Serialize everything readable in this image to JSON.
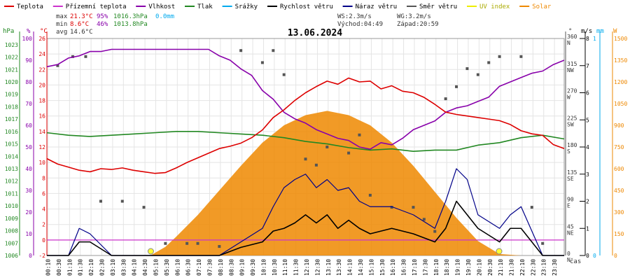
{
  "legend": [
    {
      "label": "Teplota",
      "color": "#dd0000"
    },
    {
      "label": "Přízemní teplota",
      "color": "#cc33cc"
    },
    {
      "label": "Vlhkost",
      "color": "#8800aa"
    },
    {
      "label": "Tlak",
      "color": "#228822"
    },
    {
      "label": "Srážky",
      "color": "#00aaee"
    },
    {
      "label": "Rychlost větru",
      "color": "#000000"
    },
    {
      "label": "Náraz větru",
      "color": "#000088"
    },
    {
      "label": "Směr větru",
      "color": "#555555"
    },
    {
      "label": "UV index",
      "color": "#eeee00"
    },
    {
      "label": "Solar",
      "color": "#ee8800"
    }
  ],
  "stats": {
    "max_label": "max",
    "min_label": "min",
    "avg_label": "avg",
    "max_temp": "21.3°C",
    "max_hum": "95%",
    "max_press": "1016.3hPa",
    "max_rain": "0.0mm",
    "min_temp": "8.6°C",
    "min_hum": "46%",
    "min_press": "1013.8hPa",
    "avg_temp": "14.6°C"
  },
  "wind_info": {
    "ws": "WS:2.3m/s",
    "wg": "WG:3.2m/s",
    "sunrise": "Východ:04:49",
    "sunset": "Západ:20:59"
  },
  "title": "13.06.2024",
  "axis_units": {
    "pressure": "hPa",
    "humidity": "%",
    "temperature": "°C",
    "wind_dir": "°",
    "wind_speed": "m/s",
    "rain": "mm",
    "solar": "W",
    "time": "čas"
  },
  "chart_data": {
    "type": "line",
    "title": "13.06.2024",
    "x_label": "čas",
    "x_ticks": [
      "00:10",
      "00:30",
      "01:10",
      "01:30",
      "02:10",
      "02:30",
      "03:10",
      "03:30",
      "04:10",
      "04:30",
      "05:10",
      "05:30",
      "06:10",
      "06:30",
      "07:10",
      "07:30",
      "08:10",
      "08:30",
      "09:10",
      "09:30",
      "10:10",
      "10:30",
      "11:10",
      "11:30",
      "12:10",
      "12:30",
      "13:10",
      "13:30",
      "14:10",
      "14:30",
      "15:10",
      "15:30",
      "16:10",
      "16:30",
      "17:10",
      "17:30",
      "18:10",
      "18:30",
      "19:10",
      "19:30",
      "20:10",
      "20:30",
      "21:10",
      "21:30",
      "22:10",
      "22:30",
      "23:10",
      "23:30"
    ],
    "x_range_hours": [
      0,
      24
    ],
    "axes": {
      "pressure_hPa": {
        "ticks": [
          1006,
          1007,
          1008,
          1009,
          1010,
          1011,
          1012,
          1013,
          1014,
          1015,
          1016,
          1017,
          1018,
          1019,
          1020,
          1021,
          1022,
          1023
        ],
        "range": [
          1006,
          1023.5
        ]
      },
      "humidity_pct": {
        "ticks": [
          0,
          10,
          20,
          30,
          40,
          50,
          60,
          70,
          80,
          90,
          100
        ],
        "range": [
          0,
          100
        ]
      },
      "temperature_C": {
        "ticks": [
          -2,
          0,
          2,
          4,
          6,
          8,
          10,
          12,
          14,
          16,
          18,
          20,
          22,
          24,
          26
        ],
        "range": [
          -2,
          26
        ]
      },
      "wind_dir_deg": {
        "ticks": [
          0,
          45,
          90,
          135,
          180,
          225,
          270,
          315,
          360
        ],
        "labels": [
          "N",
          "NE",
          "E",
          "SE",
          "S",
          "SW",
          "W",
          "NW",
          "N"
        ],
        "range": [
          0,
          360
        ]
      },
      "wind_speed_ms": {
        "ticks": [
          0,
          1,
          2,
          3,
          4,
          5,
          6,
          7,
          8
        ],
        "range": [
          0,
          8
        ]
      },
      "rain_mm": {
        "ticks": [
          0,
          1
        ],
        "range": [
          0,
          1
        ]
      },
      "solar_W": {
        "ticks": [
          0,
          150,
          300,
          450,
          600,
          750,
          900,
          1050,
          1200,
          1350,
          1500
        ],
        "range": [
          0,
          1500
        ]
      }
    },
    "series": [
      {
        "name": "Teplota",
        "unit": "°C",
        "axis": "temperature_C",
        "color": "#dd0000",
        "x": [
          0,
          0.5,
          1,
          1.5,
          2,
          2.5,
          3,
          3.5,
          4,
          4.5,
          5,
          5.5,
          6,
          6.5,
          7,
          7.5,
          8,
          8.5,
          9,
          9.5,
          10,
          10.5,
          11,
          11.5,
          12,
          12.5,
          13,
          13.5,
          14,
          14.5,
          15,
          15.5,
          16,
          16.5,
          17,
          17.5,
          18,
          18.5,
          19,
          19.5,
          20,
          20.5,
          21,
          21.5,
          22,
          22.5,
          23,
          23.5,
          24
        ],
        "y": [
          10.5,
          9.8,
          9.4,
          9.0,
          8.8,
          9.2,
          9.1,
          9.3,
          9.0,
          8.8,
          8.6,
          8.7,
          9.3,
          10.0,
          10.6,
          11.2,
          11.8,
          12.1,
          12.5,
          13.2,
          14.2,
          15.8,
          16.8,
          18.0,
          19.0,
          19.8,
          20.5,
          20.1,
          20.9,
          20.4,
          20.5,
          19.5,
          19.9,
          19.2,
          19.0,
          18.4,
          17.5,
          16.5,
          16.2,
          16.0,
          15.8,
          15.6,
          15.4,
          14.9,
          14.1,
          13.7,
          13.5,
          12.3,
          11.8
        ]
      },
      {
        "name": "Vlhkost",
        "unit": "%",
        "axis": "humidity_pct",
        "color": "#8800aa",
        "x": [
          0,
          0.5,
          1,
          1.5,
          2,
          2.5,
          3,
          3.5,
          4,
          4.5,
          5,
          5.5,
          6,
          6.5,
          7,
          7.5,
          8,
          8.5,
          9,
          9.5,
          10,
          10.5,
          11,
          11.5,
          12,
          12.5,
          13,
          13.5,
          14,
          14.5,
          15,
          15.5,
          16,
          16.5,
          17,
          17.5,
          18,
          18.5,
          19,
          19.5,
          20,
          20.5,
          21,
          21.5,
          22,
          22.5,
          23,
          23.5,
          24
        ],
        "y": [
          87,
          88,
          91,
          92,
          94,
          94,
          95,
          95,
          95,
          95,
          95,
          95,
          95,
          95,
          95,
          95,
          92,
          90,
          86,
          83,
          76,
          72,
          66,
          63,
          61,
          58,
          56,
          54,
          53,
          50,
          49,
          52,
          51,
          54,
          58,
          60,
          62,
          66,
          68,
          69,
          71,
          73,
          78,
          80,
          82,
          84,
          85,
          88,
          90
        ]
      },
      {
        "name": "Tlak",
        "unit": "hPa",
        "axis": "pressure_hPa",
        "color": "#228822",
        "x": [
          0,
          1,
          2,
          3,
          4,
          5,
          6,
          7,
          8,
          9,
          10,
          11,
          12,
          13,
          14,
          15,
          16,
          17,
          18,
          19,
          20,
          21,
          22,
          23,
          24
        ],
        "y": [
          1015.9,
          1015.7,
          1015.6,
          1015.7,
          1015.8,
          1015.9,
          1016.0,
          1016.0,
          1015.9,
          1015.8,
          1015.7,
          1015.5,
          1015.2,
          1015.0,
          1014.7,
          1014.5,
          1014.6,
          1014.4,
          1014.5,
          1014.5,
          1014.9,
          1015.1,
          1015.5,
          1015.7,
          1015.4
        ]
      },
      {
        "name": "Solar",
        "unit": "W",
        "axis": "solar_W",
        "color": "#ee8800",
        "x": [
          4.8,
          5.5,
          6,
          7,
          8,
          9,
          10,
          11,
          12,
          13,
          14,
          15,
          16,
          17,
          18,
          19,
          20,
          21,
          22
        ],
        "y": [
          0,
          60,
          130,
          280,
          450,
          620,
          780,
          900,
          970,
          1000,
          970,
          900,
          780,
          620,
          440,
          260,
          100,
          10,
          0
        ]
      },
      {
        "name": "Rychlost větru",
        "unit": "m/s",
        "axis": "wind_speed_ms",
        "color": "#000000",
        "x": [
          0,
          1,
          1.5,
          2,
          3,
          4,
          5,
          6,
          7,
          8,
          9,
          10,
          10.5,
          11,
          11.5,
          12,
          12.5,
          13,
          13.5,
          14,
          14.5,
          15,
          16,
          17,
          18,
          18.5,
          19,
          20,
          21,
          21.5,
          22,
          23,
          24
        ],
        "y": [
          0,
          0,
          0.5,
          0.5,
          0,
          0,
          0,
          0,
          0,
          0,
          0.3,
          0.5,
          0.9,
          1.0,
          1.2,
          1.5,
          1.2,
          1.5,
          1.0,
          1.3,
          1.0,
          0.8,
          1.0,
          0.8,
          0.5,
          1.0,
          2.0,
          1.0,
          0.5,
          1.0,
          1.0,
          0,
          0
        ]
      },
      {
        "name": "Náraz větru",
        "unit": "m/s",
        "axis": "wind_speed_ms",
        "color": "#000088",
        "x": [
          0,
          1,
          1.5,
          2,
          3,
          4,
          5,
          6,
          7,
          8,
          9,
          10,
          10.5,
          11,
          11.5,
          12,
          12.5,
          13,
          13.5,
          14,
          14.5,
          15,
          16,
          17,
          18,
          18.5,
          19,
          19.5,
          20,
          21,
          21.5,
          22,
          23,
          24
        ],
        "y": [
          0,
          0,
          1.0,
          0.8,
          0,
          0,
          0,
          0,
          0,
          0,
          0.5,
          1.0,
          1.8,
          2.5,
          2.8,
          3.0,
          2.5,
          2.8,
          2.4,
          2.5,
          2.0,
          1.8,
          1.8,
          1.5,
          1.0,
          2.0,
          3.2,
          2.8,
          1.5,
          1.0,
          1.5,
          1.8,
          0,
          0
        ]
      },
      {
        "name": "Směr větru",
        "unit": "°",
        "axis": "wind_dir_deg",
        "color": "#555555",
        "x": [
          0.5,
          1.2,
          1.8,
          2.5,
          3.5,
          4.5,
          5.5,
          6.5,
          7.0,
          8.0,
          9.0,
          10.0,
          10.5,
          11.0,
          12.0,
          12.5,
          13.0,
          14.0,
          14.5,
          15.0,
          16.0,
          17.0,
          17.5,
          18.0,
          18.5,
          19.0,
          19.5,
          20.0,
          20.5,
          21.0,
          22.0,
          22.5,
          23.0
        ],
        "y": [
          315,
          330,
          330,
          90,
          90,
          80,
          20,
          20,
          20,
          15,
          340,
          320,
          340,
          300,
          160,
          150,
          180,
          170,
          200,
          100,
          80,
          80,
          60,
          40,
          260,
          280,
          310,
          300,
          320,
          330,
          330,
          80,
          20
        ]
      }
    ],
    "reference_lines": [
      {
        "name": "temperature zero",
        "axis": "temperature_C",
        "value": 0,
        "color": "#cc33cc"
      }
    ],
    "markers": [
      {
        "name": "sunrise",
        "x": 4.82
      },
      {
        "name": "sunset",
        "x": 20.98
      }
    ],
    "legend_position": "top",
    "grid": true
  }
}
